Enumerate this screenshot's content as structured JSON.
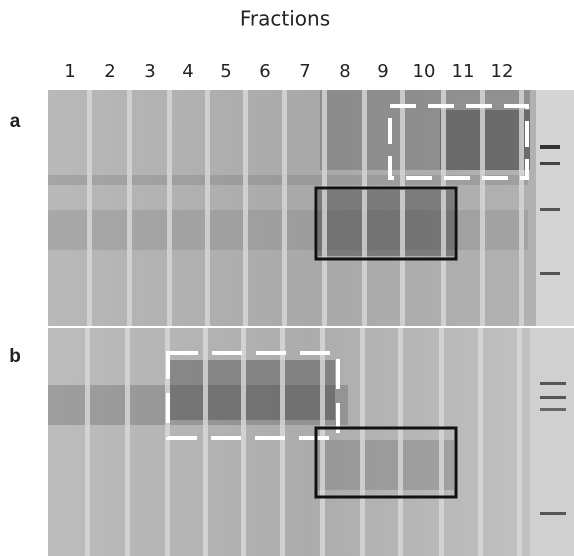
{
  "header": {
    "title": "Fractions"
  },
  "lanes": [
    "1",
    "2",
    "3",
    "4",
    "5",
    "6",
    "7",
    "8",
    "9",
    "10",
    "11",
    "12"
  ],
  "panels": [
    {
      "label": "a"
    },
    {
      "label": "b"
    }
  ]
}
